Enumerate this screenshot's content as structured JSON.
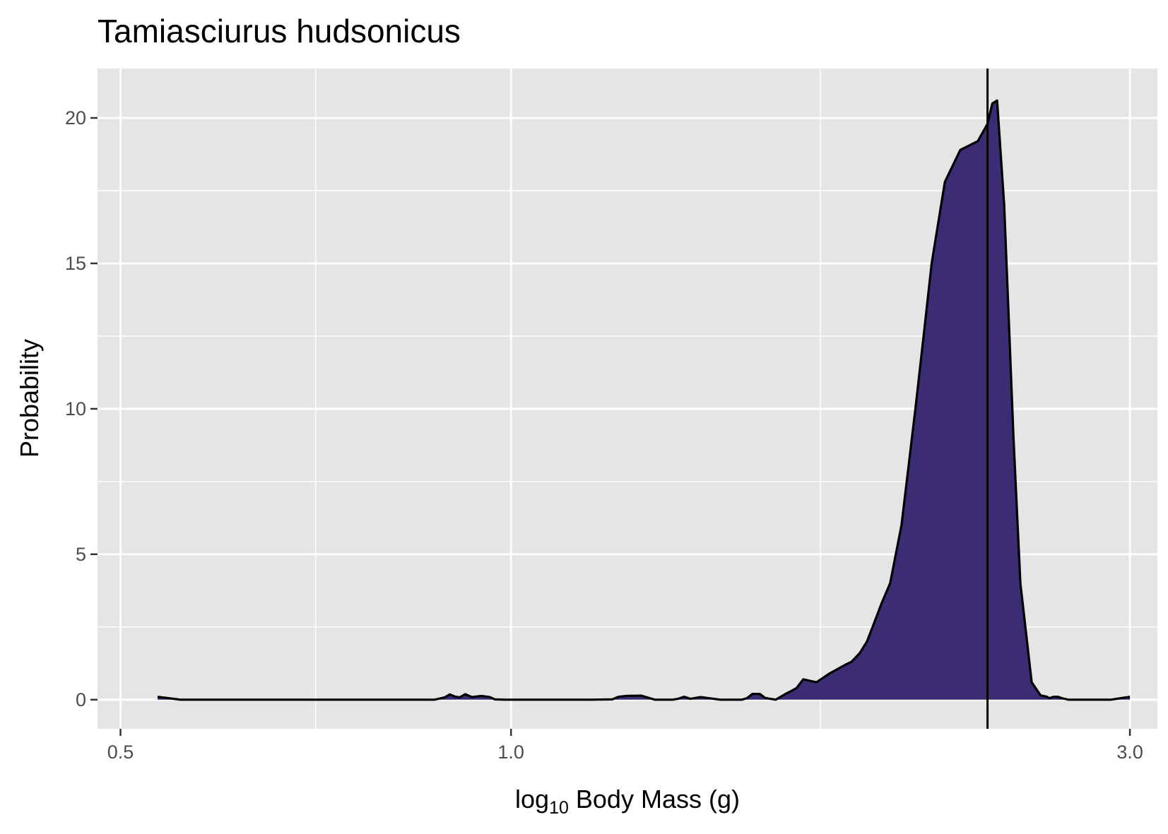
{
  "chart_data": {
    "type": "area",
    "title": "Tamiasciurus hudsonicus",
    "xlabel": {
      "base": "log",
      "subscript": "10",
      "rest": " Body Mass (g)"
    },
    "ylabel": "Probability",
    "x_scale": "log",
    "xlim": [
      0.48,
      3.15
    ],
    "ylim": [
      -1.0,
      21.7
    ],
    "x_ticks": [
      {
        "value": 0.5,
        "label": "0.5"
      },
      {
        "value": 1.0,
        "label": "1.0"
      },
      {
        "value": 3.0,
        "label": "3.0"
      }
    ],
    "y_ticks": [
      {
        "value": 0,
        "label": "0"
      },
      {
        "value": 5,
        "label": "5"
      },
      {
        "value": 10,
        "label": "10"
      },
      {
        "value": 15,
        "label": "15"
      },
      {
        "value": 20,
        "label": "20"
      }
    ],
    "x_minor_gridlines": [
      0.707,
      1.732
    ],
    "y_minor_gridlines": [
      2.5,
      7.5,
      12.5,
      17.5
    ],
    "grid": true,
    "fill_color": "#3b2c73",
    "line_color": "#000000",
    "panel_background": "#e5e5e5",
    "vline": {
      "x": 2.33
    },
    "series": [
      {
        "x": [
          0.534,
          0.545,
          0.556,
          0.567,
          0.579,
          0.62,
          0.7,
          0.8,
          0.873,
          0.889,
          0.897,
          0.905,
          0.913,
          0.922,
          0.933,
          0.949,
          0.963,
          0.972,
          0.99,
          1.05,
          1.15,
          1.197,
          1.21,
          1.227,
          1.26,
          1.291,
          1.332,
          1.345,
          1.36,
          1.375,
          1.4,
          1.45,
          1.48,
          1.506,
          1.52,
          1.535,
          1.555,
          1.57,
          1.6,
          1.628,
          1.645,
          1.66,
          1.68,
          1.72,
          1.76,
          1.81,
          1.83,
          1.857,
          1.881,
          1.9,
          1.93,
          1.96,
          2.0,
          2.05,
          2.08,
          2.11,
          2.16,
          2.22,
          2.29,
          2.33,
          2.35,
          2.37,
          2.4,
          2.42,
          2.44,
          2.47,
          2.52,
          2.56,
          2.59,
          2.6,
          2.62,
          2.64,
          2.66,
          2.69,
          2.73,
          2.8,
          2.9,
          2.95,
          3.0
        ],
        "y": [
          0.1,
          0.05,
          0.0,
          0.0,
          0.0,
          0.0,
          0.0,
          0.0,
          0.0,
          0.08,
          0.18,
          0.11,
          0.08,
          0.19,
          0.09,
          0.13,
          0.09,
          0.01,
          0.0,
          0.0,
          0.0,
          0.01,
          0.1,
          0.13,
          0.14,
          0.0,
          0.0,
          0.03,
          0.1,
          0.03,
          0.09,
          0.0,
          0.0,
          0.0,
          0.05,
          0.2,
          0.2,
          0.06,
          0.0,
          0.2,
          0.3,
          0.4,
          0.7,
          0.6,
          0.9,
          1.2,
          1.3,
          1.6,
          2.0,
          2.5,
          3.3,
          4.0,
          6.0,
          10.0,
          12.5,
          15.0,
          17.8,
          18.9,
          19.2,
          19.8,
          20.5,
          20.6,
          17.0,
          13.0,
          9.0,
          4.0,
          0.6,
          0.15,
          0.1,
          0.05,
          0.1,
          0.1,
          0.05,
          0.0,
          0.0,
          0.0,
          0.0,
          0.05,
          0.1
        ]
      }
    ]
  }
}
